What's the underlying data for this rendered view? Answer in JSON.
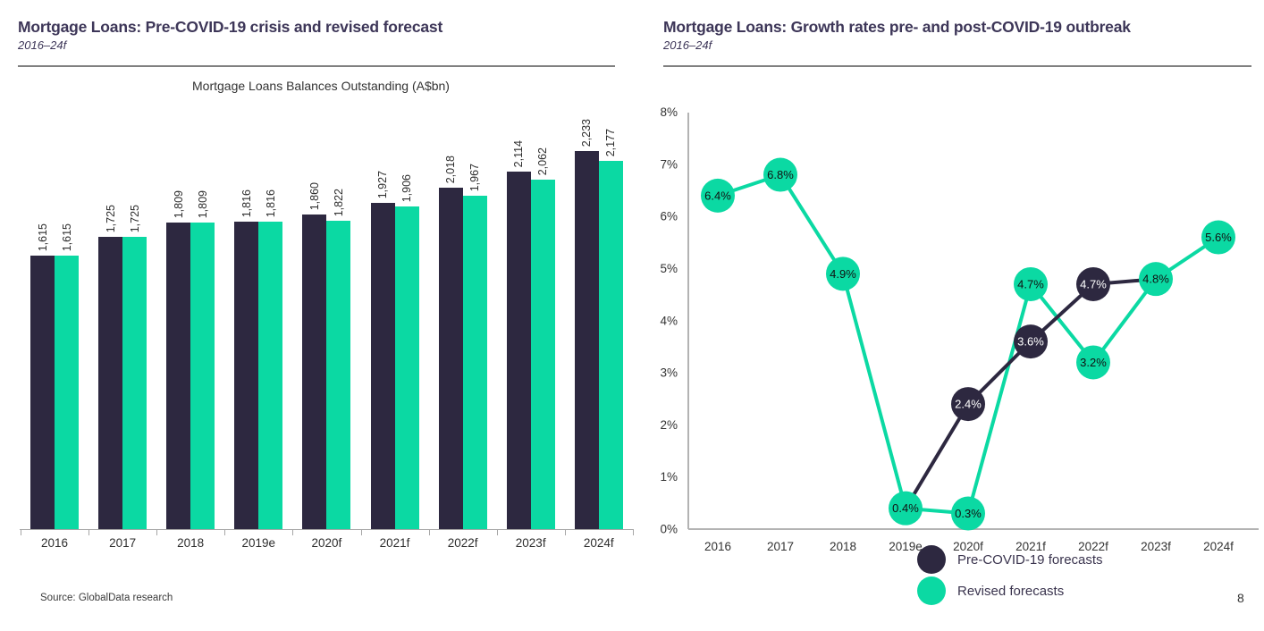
{
  "page_number": "8",
  "source_note": "Source: GlobalData research",
  "colors": {
    "dark": "#2d2840",
    "green": "#0bd9a3",
    "title_text": "#3d3658",
    "axis_line": "#b3b3b3",
    "body_text": "#333333"
  },
  "left_panel": {
    "title": "Mortgage Loans: Pre-COVID-19 crisis and revised forecast",
    "subtitle": "2016–24f"
  },
  "right_panel": {
    "title": "Mortgage Loans: Growth rates pre- and post-COVID-19 outbreak",
    "subtitle": "2016–24f"
  },
  "chart_data": [
    {
      "type": "bar",
      "title": "Mortgage Loans Balances Outstanding (A$bn)",
      "categories": [
        "2016",
        "2017",
        "2018",
        "2019e",
        "2020f",
        "2021f",
        "2022f",
        "2023f",
        "2024f"
      ],
      "series": [
        {
          "name": "Pre-COVID-19 forecasts",
          "color_key": "dark",
          "values": [
            1615,
            1725,
            1809,
            1816,
            1860,
            1927,
            2018,
            2114,
            2233
          ]
        },
        {
          "name": "Revised forecasts",
          "color_key": "green",
          "values": [
            1615,
            1725,
            1809,
            1816,
            1822,
            1906,
            1967,
            2062,
            2177
          ]
        }
      ],
      "xlabel": "",
      "ylabel": "",
      "ylim": [
        0,
        2550
      ],
      "y_axis_visible": false,
      "value_labels": "rotated-90-above-bars",
      "grid": false,
      "legend": false
    },
    {
      "type": "line",
      "title": "",
      "categories": [
        "2016",
        "2017",
        "2018",
        "2019e",
        "2020f",
        "2021f",
        "2022f",
        "2023f",
        "2024f"
      ],
      "series": [
        {
          "name": "Pre-COVID-19 forecasts",
          "color_key": "dark",
          "values": [
            null,
            null,
            null,
            0.4,
            2.4,
            3.6,
            4.7,
            4.8,
            null
          ],
          "marker_indices": [
            4,
            5,
            6
          ],
          "label_color": "#ffffff"
        },
        {
          "name": "Revised forecasts",
          "color_key": "green",
          "values": [
            6.4,
            6.8,
            4.9,
            0.4,
            0.3,
            4.7,
            3.2,
            4.8,
            5.6
          ],
          "label_color": "#111111"
        }
      ],
      "xlabel": "",
      "ylabel": "",
      "ylim": [
        0,
        8
      ],
      "ytick_step": 1,
      "ytick_suffix": "%",
      "yticks": [
        "0%",
        "1%",
        "2%",
        "3%",
        "4%",
        "5%",
        "6%",
        "7%",
        "8%"
      ],
      "data_label_format": "0.0%",
      "grid": false,
      "legend_position": "bottom"
    }
  ]
}
